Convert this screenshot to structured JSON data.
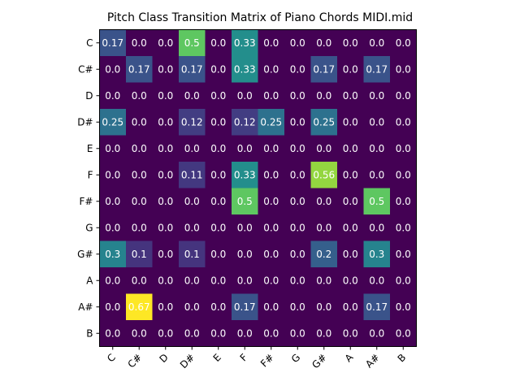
{
  "chart_data": {
    "type": "heatmap",
    "title": "Pitch Class Transition Matrix of Piano Chords MIDI.mid",
    "xlabel": "",
    "ylabel": "",
    "rows": [
      "C",
      "C#",
      "D",
      "D#",
      "E",
      "F",
      "F#",
      "G",
      "G#",
      "A",
      "A#",
      "B"
    ],
    "cols": [
      "C",
      "C#",
      "D",
      "D#",
      "E",
      "F",
      "F#",
      "G",
      "G#",
      "A",
      "A#",
      "B"
    ],
    "values": [
      [
        0.17,
        0.0,
        0.0,
        0.5,
        0.0,
        0.33,
        0.0,
        0.0,
        0.0,
        0.0,
        0.0,
        0.0
      ],
      [
        0.0,
        0.17,
        0.0,
        0.17,
        0.0,
        0.33,
        0.0,
        0.0,
        0.17,
        0.0,
        0.17,
        0.0
      ],
      [
        0.0,
        0.0,
        0.0,
        0.0,
        0.0,
        0.0,
        0.0,
        0.0,
        0.0,
        0.0,
        0.0,
        0.0
      ],
      [
        0.25,
        0.0,
        0.0,
        0.12,
        0.0,
        0.12,
        0.25,
        0.0,
        0.25,
        0.0,
        0.0,
        0.0
      ],
      [
        0.0,
        0.0,
        0.0,
        0.0,
        0.0,
        0.0,
        0.0,
        0.0,
        0.0,
        0.0,
        0.0,
        0.0
      ],
      [
        0.0,
        0.0,
        0.0,
        0.11,
        0.0,
        0.33,
        0.0,
        0.0,
        0.56,
        0.0,
        0.0,
        0.0
      ],
      [
        0.0,
        0.0,
        0.0,
        0.0,
        0.0,
        0.5,
        0.0,
        0.0,
        0.0,
        0.0,
        0.5,
        0.0
      ],
      [
        0.0,
        0.0,
        0.0,
        0.0,
        0.0,
        0.0,
        0.0,
        0.0,
        0.0,
        0.0,
        0.0,
        0.0
      ],
      [
        0.3,
        0.1,
        0.0,
        0.1,
        0.0,
        0.0,
        0.0,
        0.0,
        0.2,
        0.0,
        0.3,
        0.0
      ],
      [
        0.0,
        0.0,
        0.0,
        0.0,
        0.0,
        0.0,
        0.0,
        0.0,
        0.0,
        0.0,
        0.0,
        0.0
      ],
      [
        0.0,
        0.67,
        0.0,
        0.0,
        0.0,
        0.17,
        0.0,
        0.0,
        0.0,
        0.0,
        0.17,
        0.0
      ],
      [
        0.0,
        0.0,
        0.0,
        0.0,
        0.0,
        0.0,
        0.0,
        0.0,
        0.0,
        0.0,
        0.0,
        0.0
      ]
    ],
    "value_range": [
      0.0,
      0.67
    ],
    "colormap": "viridis",
    "grid": false,
    "legend": "none"
  },
  "colors": {
    "text_on_cells": "#ffffff",
    "title_text": "#000000",
    "tick_text": "#000000",
    "axes_frame": "#000000"
  }
}
